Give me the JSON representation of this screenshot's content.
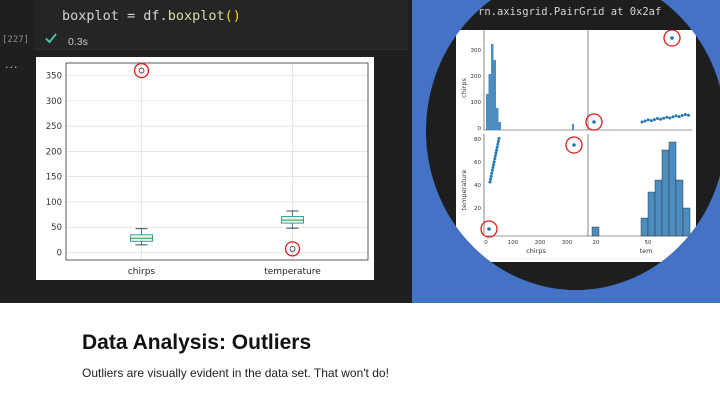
{
  "notebook": {
    "code_var": "boxplot",
    "code_op": " = df.",
    "code_fn": "boxplot",
    "code_parens": "()",
    "exec_count": "[227]",
    "exec_time": "0.3s",
    "output_more": "...",
    "status_icon": "check-icon",
    "colors": {
      "background": "#1f1f1f",
      "success": "#4ec9b0"
    }
  },
  "pairgrid": {
    "output_text": "rn.axisgrid.PairGrid at 0x2af",
    "y_labels": [
      "chirps",
      "temperature"
    ],
    "x_labels": [
      "chirps",
      "tem"
    ],
    "chirps_ticks": [
      "0",
      "100",
      "200",
      "300"
    ],
    "temp_ticks": [
      "20",
      "40",
      "60",
      "80"
    ],
    "bottom_tick_chirps": [
      "0",
      "100",
      "200",
      "300"
    ],
    "bottom_tick_temp": [
      "20",
      "50"
    ],
    "colors": {
      "panel": "#4472c4",
      "points": "#1f77b4",
      "highlight": "#e31a1c"
    }
  },
  "slide": {
    "title": "Data Analysis: Outliers",
    "subtitle": "Outliers are visually evident in the data set. That won't do!"
  },
  "chart_data": [
    {
      "type": "box",
      "categories": [
        "chirps",
        "temperature"
      ],
      "yticks": [
        "0",
        "50",
        "100",
        "150",
        "200",
        "250",
        "300",
        "350"
      ],
      "ylim": [
        -15,
        375
      ],
      "grid": true,
      "series": [
        {
          "whisker_low": 15,
          "q1": 22,
          "median": 28,
          "q3": 35,
          "whisker_high": 47,
          "outliers": [
            360
          ]
        },
        {
          "whisker_low": 48,
          "q1": 58,
          "median": 64,
          "q3": 71,
          "whisker_high": 82,
          "outliers": [
            7
          ]
        }
      ],
      "highlighted": [
        "chirps outlier 360",
        "temperature outlier 7"
      ],
      "colors": {
        "box": "#1f9e89",
        "median": "#2ca02c",
        "whisker": "#1f77b4",
        "circle": "#e31a1c"
      }
    }
  ]
}
